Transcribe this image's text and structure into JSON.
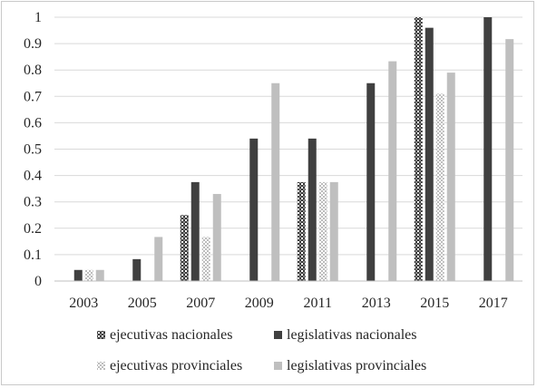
{
  "chart_data": {
    "type": "bar",
    "categories": [
      "2003",
      "2005",
      "2007",
      "2009",
      "2011",
      "2013",
      "2015",
      "2017"
    ],
    "ylim": [
      0,
      1
    ],
    "yticks": [
      "0",
      "0.1",
      "0.2",
      "0.3",
      "0.4",
      "0.5",
      "0.6",
      "0.7",
      "0.8",
      "0.9",
      "1"
    ],
    "grid": true,
    "legend_position": "bottom",
    "series": [
      {
        "name": "ejecutivas nacionales",
        "color": "#3a3a3a",
        "pattern": "dark-checker",
        "values": [
          0,
          0,
          0.25,
          0,
          0.375,
          0,
          1,
          0
        ]
      },
      {
        "name": "legislativas nacionales",
        "color": "#404040",
        "pattern": "solid",
        "values": [
          0.042,
          0.083,
          0.375,
          0.54,
          0.54,
          0.75,
          0.96,
          1
        ]
      },
      {
        "name": "ejecutivas provinciales",
        "color": "#c8c8c8",
        "pattern": "light-checker",
        "values": [
          0.042,
          0,
          0.167,
          0,
          0.375,
          0,
          0.71,
          0
        ]
      },
      {
        "name": "legislativas provinciales",
        "color": "#bfbfbf",
        "pattern": "solid",
        "values": [
          0.042,
          0.167,
          0.33,
          0.75,
          0.375,
          0.833,
          0.79,
          0.917
        ]
      }
    ]
  }
}
